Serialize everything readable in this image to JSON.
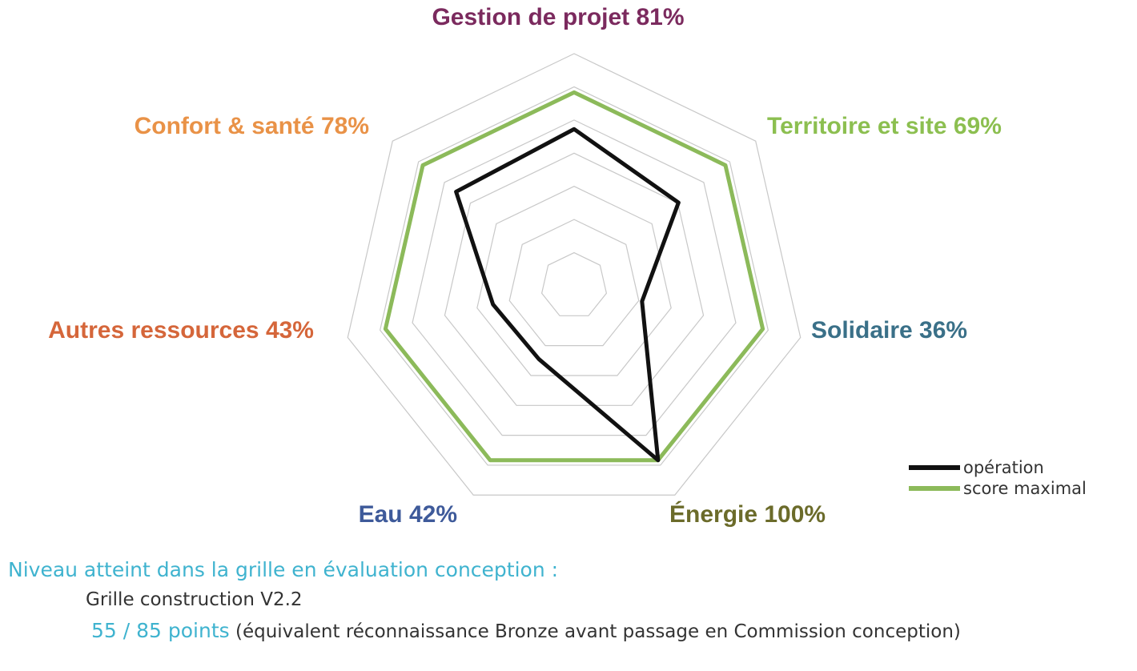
{
  "chart_data": {
    "type": "radar",
    "axes": [
      {
        "label": "Gestion de projet 81%",
        "color": "#7b2a5e"
      },
      {
        "label": "Territoire et site 69%",
        "color": "#8cbf50"
      },
      {
        "label": "Solidaire 36%",
        "color": "#3a7088"
      },
      {
        "label": "Énergie 100%",
        "color": "#6b6b2a"
      },
      {
        "label": "Eau 42%",
        "color": "#3e5a9a"
      },
      {
        "label": "Autres ressources 43%",
        "color": "#d5663a"
      },
      {
        "label": "Confort & santé 78%",
        "color": "#e99247"
      }
    ],
    "series": [
      {
        "name": "opération",
        "color": "#111111",
        "values": [
          81,
          69,
          36,
          100,
          42,
          43,
          78
        ]
      },
      {
        "name": "score maximal",
        "color": "#8cba5a",
        "values": [
          100,
          100,
          100,
          100,
          100,
          100,
          100
        ]
      }
    ],
    "rlim": [
      0,
      120
    ],
    "grid": true,
    "legend_position": "bottom-right"
  },
  "legend": {
    "operation": "opération",
    "max": "score maximal"
  },
  "footer": {
    "title": "Niveau atteint dans la grille en évaluation conception :",
    "grid_version": "Grille construction V2.2",
    "points": "55 / 85 points",
    "note": " (équivalent réconnaissance Bronze avant passage en Commission conception)"
  }
}
